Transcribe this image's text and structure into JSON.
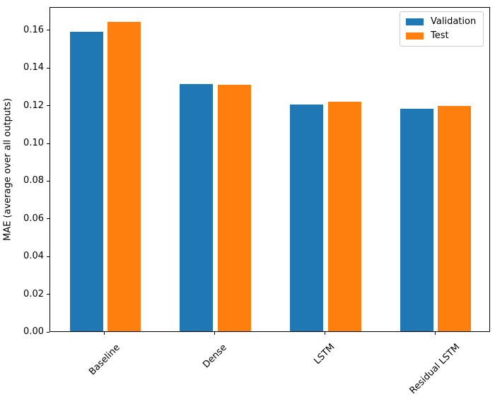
{
  "chart_data": {
    "type": "bar",
    "title": "",
    "xlabel": "",
    "ylabel": "MAE (average over all outputs)",
    "categories": [
      "Baseline",
      "Dense",
      "LSTM",
      "Residual LSTM"
    ],
    "series": [
      {
        "name": "Validation",
        "color": "#1f77b4",
        "values": [
          0.159,
          0.1312,
          0.1202,
          0.118
        ]
      },
      {
        "name": "Test",
        "color": "#ff7f0e",
        "values": [
          0.1641,
          0.1307,
          0.1218,
          0.1195
        ]
      }
    ],
    "yticks": [
      {
        "value": 0.0,
        "label": "0.00"
      },
      {
        "value": 0.02,
        "label": "0.02"
      },
      {
        "value": 0.04,
        "label": "0.04"
      },
      {
        "value": 0.06,
        "label": "0.06"
      },
      {
        "value": 0.08,
        "label": "0.08"
      },
      {
        "value": 0.1,
        "label": "0.10"
      },
      {
        "value": 0.12,
        "label": "0.12"
      },
      {
        "value": 0.14,
        "label": "0.14"
      },
      {
        "value": 0.16,
        "label": "0.16"
      }
    ],
    "ylim": [
      0,
      0.1723
    ],
    "grid": false,
    "xtick_rotation": 45,
    "legend": {
      "position": "upper right"
    }
  }
}
